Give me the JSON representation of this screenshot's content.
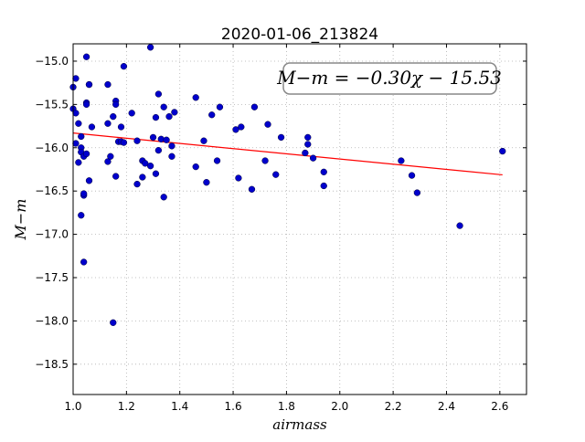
{
  "chart_data": {
    "type": "scatter",
    "title": "2020-01-06_213824",
    "xlabel": "airmass",
    "ylabel": "M−m",
    "xlim": [
      1.0,
      2.7
    ],
    "ylim": [
      -18.85,
      -14.8
    ],
    "y_inverted": true,
    "grid": true,
    "xticks": [
      1.0,
      1.2,
      1.4,
      1.6,
      1.8,
      2.0,
      2.2,
      2.4,
      2.6
    ],
    "xtick_labels": [
      "1.0",
      "1.2",
      "1.4",
      "1.6",
      "1.8",
      "2.0",
      "2.2",
      "2.4",
      "2.6"
    ],
    "yticks": [
      -15.0,
      -15.5,
      -16.0,
      -16.5,
      -17.0,
      -17.5,
      -18.0,
      -18.5
    ],
    "ytick_labels": [
      "−15.0",
      "−15.5",
      "−16.0",
      "−16.5",
      "−17.0",
      "−17.5",
      "−18.0",
      "−18.5"
    ],
    "annotation": "M−m = −0.30χ − 15.53",
    "annotation_position": "top-right",
    "series": [
      {
        "kind": "points",
        "color": "#0000cc",
        "points": [
          [
            1.0,
            -15.3
          ],
          [
            1.0,
            -15.55
          ],
          [
            1.01,
            -15.6
          ],
          [
            1.01,
            -15.95
          ],
          [
            1.01,
            -15.2
          ],
          [
            1.02,
            -15.72
          ],
          [
            1.02,
            -16.17
          ],
          [
            1.03,
            -16.0
          ],
          [
            1.03,
            -16.05
          ],
          [
            1.03,
            -15.87
          ],
          [
            1.03,
            -16.78
          ],
          [
            1.04,
            -16.1
          ],
          [
            1.04,
            -16.55
          ],
          [
            1.04,
            -16.53
          ],
          [
            1.05,
            -15.48
          ],
          [
            1.05,
            -15.5
          ],
          [
            1.05,
            -14.95
          ],
          [
            1.05,
            -16.07
          ],
          [
            1.04,
            -17.32
          ],
          [
            1.06,
            -15.27
          ],
          [
            1.06,
            -15.27
          ],
          [
            1.06,
            -16.38
          ],
          [
            1.07,
            -15.76
          ],
          [
            1.13,
            -15.27
          ],
          [
            1.13,
            -16.16
          ],
          [
            1.13,
            -15.72
          ],
          [
            1.14,
            -16.1
          ],
          [
            1.15,
            -15.64
          ],
          [
            1.16,
            -15.46
          ],
          [
            1.16,
            -15.5
          ],
          [
            1.16,
            -16.33
          ],
          [
            1.17,
            -15.93
          ],
          [
            1.18,
            -15.93
          ],
          [
            1.18,
            -15.76
          ],
          [
            1.19,
            -15.94
          ],
          [
            1.19,
            -15.06
          ],
          [
            1.22,
            -15.6
          ],
          [
            1.24,
            -16.42
          ],
          [
            1.24,
            -15.92
          ],
          [
            1.26,
            -16.34
          ],
          [
            1.26,
            -16.15
          ],
          [
            1.27,
            -16.18
          ],
          [
            1.29,
            -16.21
          ],
          [
            1.29,
            -14.84
          ],
          [
            1.3,
            -15.88
          ],
          [
            1.31,
            -16.3
          ],
          [
            1.31,
            -15.65
          ],
          [
            1.32,
            -16.03
          ],
          [
            1.32,
            -15.38
          ],
          [
            1.33,
            -15.9
          ],
          [
            1.34,
            -15.53
          ],
          [
            1.34,
            -16.57
          ],
          [
            1.35,
            -15.91
          ],
          [
            1.36,
            -15.64
          ],
          [
            1.37,
            -15.98
          ],
          [
            1.37,
            -16.1
          ],
          [
            1.38,
            -15.59
          ],
          [
            1.15,
            -18.02
          ],
          [
            1.46,
            -15.42
          ],
          [
            1.46,
            -16.22
          ],
          [
            1.49,
            -15.92
          ],
          [
            1.5,
            -16.4
          ],
          [
            1.52,
            -15.62
          ],
          [
            1.54,
            -16.15
          ],
          [
            1.55,
            -15.53
          ],
          [
            1.61,
            -15.79
          ],
          [
            1.62,
            -16.35
          ],
          [
            1.63,
            -15.76
          ],
          [
            1.67,
            -16.48
          ],
          [
            1.68,
            -15.53
          ],
          [
            1.72,
            -16.15
          ],
          [
            1.73,
            -15.73
          ],
          [
            1.76,
            -16.31
          ],
          [
            1.78,
            -15.88
          ],
          [
            1.87,
            -16.06
          ],
          [
            1.88,
            -15.88
          ],
          [
            1.88,
            -15.96
          ],
          [
            1.9,
            -16.12
          ],
          [
            1.94,
            -16.28
          ],
          [
            1.94,
            -16.44
          ],
          [
            2.23,
            -16.15
          ],
          [
            2.27,
            -16.32
          ],
          [
            2.29,
            -16.52
          ],
          [
            2.45,
            -16.9
          ],
          [
            2.61,
            -16.04
          ]
        ]
      },
      {
        "kind": "fit",
        "color": "#ff0000",
        "slope": -0.3,
        "intercept": -15.53,
        "x_range": [
          1.0,
          2.61
        ]
      }
    ]
  }
}
